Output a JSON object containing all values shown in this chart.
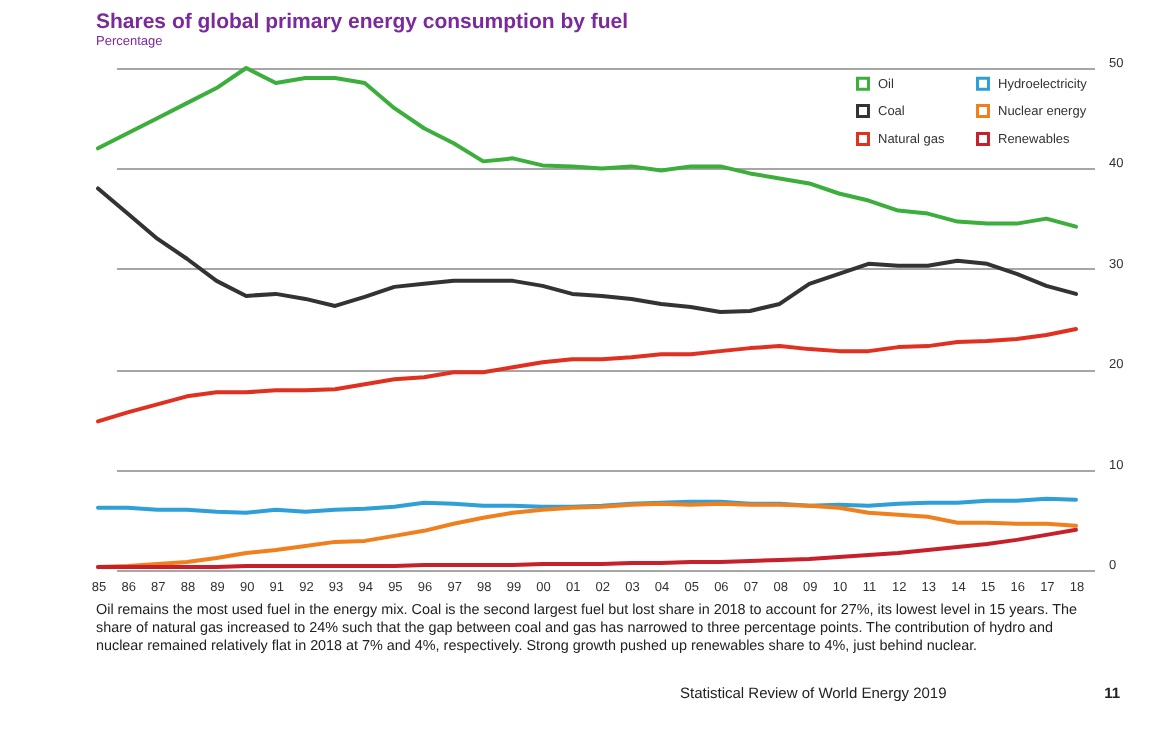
{
  "chart_data": {
    "type": "line",
    "title": "Shares of global primary energy consumption by fuel",
    "subtitle": "Percentage",
    "categories": [
      "85",
      "86",
      "87",
      "88",
      "89",
      "90",
      "91",
      "92",
      "93",
      "94",
      "95",
      "96",
      "97",
      "98",
      "99",
      "00",
      "01",
      "02",
      "03",
      "04",
      "05",
      "06",
      "07",
      "08",
      "09",
      "10",
      "11",
      "12",
      "13",
      "14",
      "15",
      "16",
      "17",
      "18"
    ],
    "series": [
      {
        "name": "Oil",
        "color": "#3cae3c",
        "values": [
          42,
          43.5,
          45,
          46.5,
          48,
          50,
          48.5,
          49,
          49,
          48.5,
          46,
          44,
          42.5,
          40.7,
          41,
          40.3,
          40.2,
          40,
          40.2,
          39.8,
          40.2,
          40.2,
          39.5,
          39,
          38.5,
          37.5,
          36.8,
          35.8,
          35.5,
          34.7,
          34.5,
          34.5,
          35,
          34.2
        ]
      },
      {
        "name": "Coal",
        "color": "#333333",
        "values": [
          38,
          35.5,
          33,
          31,
          28.8,
          27.3,
          27.5,
          27,
          26.3,
          27.2,
          28.2,
          28.5,
          28.8,
          28.8,
          28.8,
          28.3,
          27.5,
          27.3,
          27,
          26.5,
          26.2,
          25.7,
          25.8,
          26.5,
          28.5,
          29.5,
          30.5,
          30.3,
          30.3,
          30.8,
          30.5,
          29.5,
          28.3,
          27.5
        ]
      },
      {
        "name": "Natural gas",
        "color": "#e03020",
        "values": [
          14.8,
          15.7,
          16.5,
          17.3,
          17.7,
          17.7,
          17.9,
          17.9,
          18,
          18.5,
          19,
          19.2,
          19.7,
          19.7,
          20.2,
          20.7,
          21,
          21,
          21.2,
          21.5,
          21.5,
          21.8,
          22.1,
          22.3,
          22,
          21.8,
          21.8,
          22.2,
          22.3,
          22.7,
          22.8,
          23,
          23.4,
          24
        ]
      },
      {
        "name": "Hydroelectricity",
        "color": "#2f9fd8",
        "values": [
          6.2,
          6.2,
          6,
          6,
          5.8,
          5.7,
          6,
          5.8,
          6,
          6.1,
          6.3,
          6.7,
          6.6,
          6.4,
          6.4,
          6.3,
          6.3,
          6.4,
          6.6,
          6.7,
          6.8,
          6.8,
          6.6,
          6.6,
          6.4,
          6.5,
          6.4,
          6.6,
          6.7,
          6.7,
          6.9,
          6.9,
          7.1,
          7
        ]
      },
      {
        "name": "Nuclear energy",
        "color": "#f07f1e",
        "values": [
          0.3,
          0.4,
          0.6,
          0.8,
          1.2,
          1.7,
          2,
          2.4,
          2.8,
          2.9,
          3.4,
          3.9,
          4.6,
          5.2,
          5.7,
          6,
          6.2,
          6.3,
          6.5,
          6.6,
          6.5,
          6.6,
          6.5,
          6.5,
          6.4,
          6.2,
          5.7,
          5.5,
          5.3,
          4.7,
          4.7,
          4.6,
          4.6,
          4.4
        ]
      },
      {
        "name": "Renewables",
        "color": "#c8202a",
        "values": [
          0.3,
          0.3,
          0.3,
          0.3,
          0.3,
          0.4,
          0.4,
          0.4,
          0.4,
          0.4,
          0.4,
          0.5,
          0.5,
          0.5,
          0.5,
          0.6,
          0.6,
          0.6,
          0.7,
          0.7,
          0.8,
          0.8,
          0.9,
          1,
          1.1,
          1.3,
          1.5,
          1.7,
          2,
          2.3,
          2.6,
          3,
          3.5,
          4
        ]
      }
    ],
    "ylim": [
      0,
      50
    ],
    "yticks": [
      0,
      10,
      20,
      30,
      40,
      50
    ],
    "grid": "y",
    "legend": "top right",
    "marker": "none",
    "line_style": "solid",
    "annotations": [
      "Oil remains the most used fuel in the energy mix. Coal is the second largest fuel but lost share in 2018 to account for 27%, its lowest level in 15 years. The share of natural gas increased to 24% such that the gap between coal and gas has narrowed to three percentage points. The contribution of hydro and nuclear remained relatively flat in 2018 at 7% and 4%, respectively. Strong growth pushed up renewables share to 4%, just behind nuclear.",
      "Statistical Review of World Energy 2019",
      "11"
    ]
  }
}
